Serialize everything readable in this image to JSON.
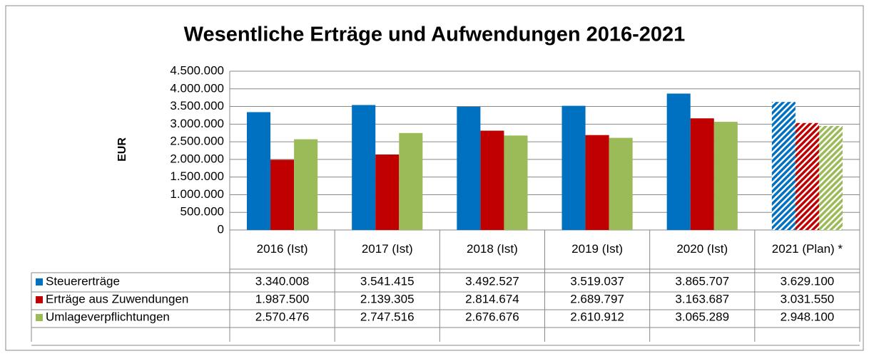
{
  "chart_data": {
    "type": "bar",
    "title": "Wesentliche Erträge und Aufwendungen 2016-2021",
    "y_label": "EUR",
    "categories": [
      "2016 (Ist)",
      "2017 (Ist)",
      "2018 (Ist)",
      "2019 (Ist)",
      "2020 (Ist)",
      "2021 (Plan) *"
    ],
    "series": [
      {
        "name": "Steuererträge",
        "color": "#0070c0",
        "values": [
          3340008,
          3541415,
          3492527,
          3519037,
          3865707,
          3629100
        ],
        "value_labels": [
          "3.340.008",
          "3.541.415",
          "3.492.527",
          "3.519.037",
          "3.865.707",
          "3.629.100"
        ]
      },
      {
        "name": "Erträge aus Zuwendungen",
        "color": "#c00000",
        "values": [
          1987500,
          2139305,
          2814674,
          2689797,
          3163687,
          3031550
        ],
        "value_labels": [
          "1.987.500",
          "2.139.305",
          "2.814.674",
          "2.689.797",
          "3.163.687",
          "3.031.550"
        ]
      },
      {
        "name": "Umlageverpflichtungen",
        "color": "#9bbb59",
        "values": [
          2570476,
          2747516,
          2676676,
          2610912,
          3065289,
          2948100
        ],
        "value_labels": [
          "2.570.476",
          "2.747.516",
          "2.676.676",
          "2.610.912",
          "3.065.289",
          "2.948.100"
        ]
      }
    ],
    "ylim": [
      0,
      4500000
    ],
    "yticks": [
      0,
      {
        "value": 500000,
        "label": "500.000"
      },
      {
        "value": 1000000,
        "label": "1.000.000"
      },
      {
        "value": 1500000,
        "label": "1.500.000"
      },
      {
        "value": 2000000,
        "label": "2.000.000"
      },
      {
        "value": 2500000,
        "label": "2.500.000"
      },
      {
        "value": 3000000,
        "label": "3.000.000"
      },
      {
        "value": 3500000,
        "label": "3.500.000"
      },
      {
        "value": 4000000,
        "label": "4.000.000"
      },
      {
        "value": 4500000,
        "label": "4.500.000"
      }
    ],
    "grid": true,
    "hatched_index": 5
  }
}
